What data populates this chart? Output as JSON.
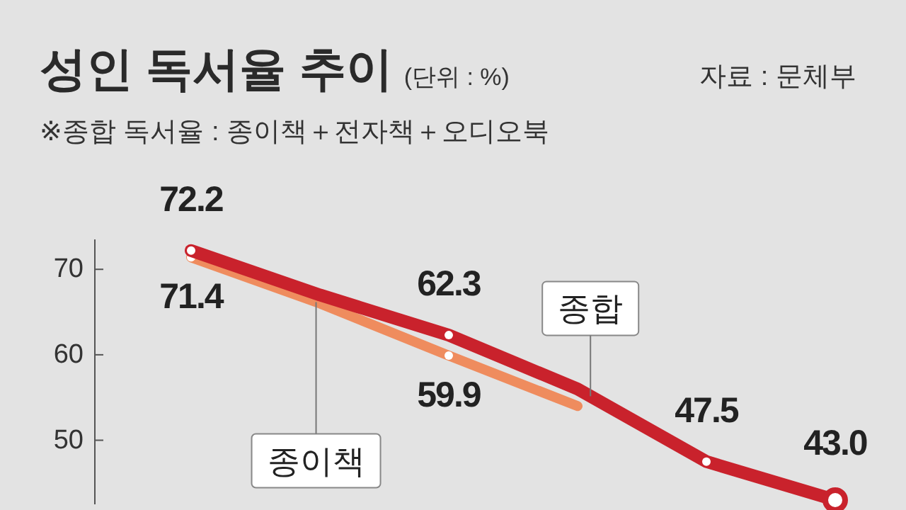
{
  "chart_data": {
    "type": "line",
    "title": "성인 독서율 추이",
    "subtitle": "※종합 독서율 : 종이책＋전자책＋오디오북",
    "annotations": [
      "(단위 : %)",
      "자료 : 문체부"
    ],
    "categories": [
      null,
      null,
      null,
      null,
      null,
      null
    ],
    "series": [
      {
        "name": "종합",
        "color": "#c9222c",
        "values": [
          72.2,
          67,
          62.3,
          56,
          47.5,
          43.0
        ],
        "value_labels": [
          "72.2",
          null,
          "62.3",
          null,
          "47.5",
          "43.0"
        ]
      },
      {
        "name": "종이책",
        "color": "#ef8c5e",
        "values": [
          71.4,
          66,
          59.9,
          54,
          null,
          null
        ],
        "value_labels": [
          "71.4",
          null,
          "59.9",
          null,
          null,
          null
        ]
      }
    ],
    "ylim": [
      42.5,
      73.5
    ],
    "yticks": [
      50,
      60,
      70
    ],
    "tick_labels": "y",
    "grid": false,
    "legend": false,
    "marker": "circle"
  }
}
